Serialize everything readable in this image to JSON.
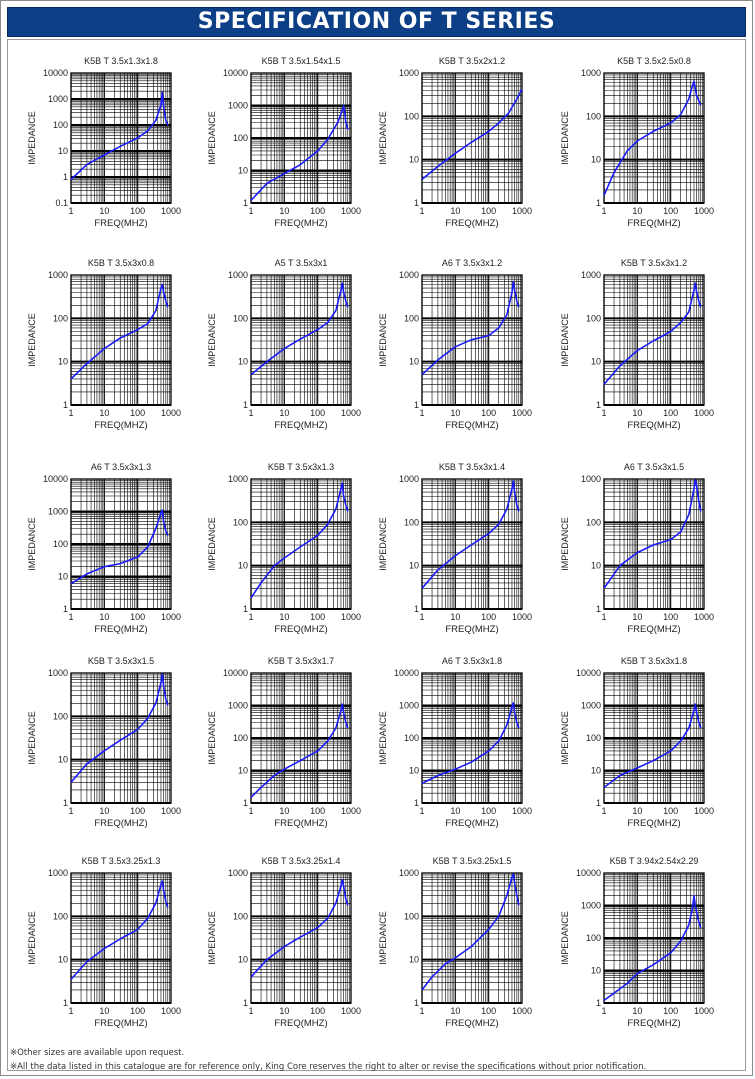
{
  "header": {
    "title": "SPECIFICATION OF T SERIES"
  },
  "notes": [
    "※Other sizes are available upon request.",
    "※All the data listed in this catalogue are for reference only, King Core reserves the right to alter or revise the specifications without prior notification."
  ],
  "colors": {
    "header_bg": "#0d3f86",
    "curve": "#1a1aff",
    "grid": "#000000"
  },
  "chart_data": [
    {
      "type": "line",
      "title": "K5B T 3.5x1.3x1.8",
      "xlabel": "FREQ(MHZ)",
      "ylabel": "IMPEDANCE",
      "xscale": "log",
      "yscale": "log",
      "xlim": [
        1,
        1000
      ],
      "ylim": [
        0.1,
        10000
      ],
      "x": [
        1,
        3,
        10,
        30,
        100,
        200,
        350,
        500,
        550,
        600,
        700,
        800
      ],
      "y": [
        0.8,
        3,
        7,
        15,
        32,
        60,
        150,
        600,
        1800,
        500,
        150,
        100
      ]
    },
    {
      "type": "line",
      "title": "K5B T 3.5x1.54x1.5",
      "xlabel": "FREQ(MHZ)",
      "ylabel": "IMPEDANCE",
      "xscale": "log",
      "yscale": "log",
      "xlim": [
        1,
        1000
      ],
      "ylim": [
        1,
        10000
      ],
      "x": [
        1,
        3,
        10,
        30,
        100,
        200,
        400,
        550,
        600,
        650,
        700,
        800
      ],
      "y": [
        1.2,
        4,
        8,
        15,
        40,
        90,
        300,
        700,
        1000,
        600,
        300,
        180
      ]
    },
    {
      "type": "line",
      "title": "K5B T 3.5x2x1.2",
      "xlabel": "FREQ(MHZ)",
      "ylabel": "IMPEDANCE",
      "xscale": "log",
      "yscale": "log",
      "xlim": [
        1,
        1000
      ],
      "ylim": [
        1,
        1000
      ],
      "x": [
        1,
        3,
        10,
        30,
        100,
        200,
        400,
        700,
        1000
      ],
      "y": [
        3.5,
        7,
        14,
        25,
        45,
        70,
        120,
        250,
        420
      ]
    },
    {
      "type": "line",
      "title": "K5B T 3.5x2.5x0.8",
      "xlabel": "FREQ(MHZ)",
      "ylabel": "IMPEDANCE",
      "xscale": "log",
      "yscale": "log",
      "xlim": [
        1,
        1000
      ],
      "ylim": [
        1,
        1000
      ],
      "x": [
        1,
        2,
        5,
        10,
        30,
        100,
        200,
        350,
        450,
        500,
        600,
        800
      ],
      "y": [
        1.5,
        5,
        16,
        27,
        45,
        70,
        110,
        250,
        500,
        650,
        300,
        180
      ]
    },
    {
      "type": "line",
      "title": "K5B T 3.5x3x0.8",
      "xlabel": "FREQ(MHZ)",
      "ylabel": "IMPEDANCE",
      "xscale": "log",
      "yscale": "log",
      "xlim": [
        1,
        1000
      ],
      "ylim": [
        1,
        1000
      ],
      "x": [
        1,
        3,
        10,
        30,
        100,
        200,
        350,
        500,
        550,
        600,
        700,
        800
      ],
      "y": [
        4,
        9,
        20,
        35,
        55,
        75,
        150,
        500,
        600,
        400,
        250,
        180
      ]
    },
    {
      "type": "line",
      "title": "A5 T 3.5x3x1",
      "xlabel": "FREQ(MHZ)",
      "ylabel": "IMPEDANCE",
      "xscale": "log",
      "yscale": "log",
      "xlim": [
        1,
        1000
      ],
      "ylim": [
        1,
        1000
      ],
      "x": [
        1,
        3,
        10,
        30,
        100,
        200,
        350,
        500,
        550,
        600,
        700,
        800
      ],
      "y": [
        5,
        10,
        20,
        33,
        55,
        80,
        150,
        450,
        650,
        400,
        250,
        180
      ]
    },
    {
      "type": "line",
      "title": "A6 T 3.5x3x1.2",
      "xlabel": "FREQ(MHZ)",
      "ylabel": "IMPEDANCE",
      "xscale": "log",
      "yscale": "log",
      "xlim": [
        1,
        1000
      ],
      "ylim": [
        1,
        1000
      ],
      "x": [
        1,
        3,
        10,
        30,
        100,
        200,
        350,
        500,
        550,
        600,
        700,
        800
      ],
      "y": [
        5,
        11,
        22,
        32,
        40,
        60,
        120,
        400,
        700,
        450,
        250,
        180
      ]
    },
    {
      "type": "line",
      "title": "K5B T 3.5x3x1.2",
      "xlabel": "FREQ(MHZ)",
      "ylabel": "IMPEDANCE",
      "xscale": "log",
      "yscale": "log",
      "xlim": [
        1,
        1000
      ],
      "ylim": [
        1,
        1000
      ],
      "x": [
        1,
        3,
        10,
        30,
        100,
        200,
        350,
        500,
        550,
        600,
        700,
        800
      ],
      "y": [
        3,
        8,
        18,
        30,
        50,
        80,
        140,
        450,
        650,
        400,
        250,
        180
      ]
    },
    {
      "type": "line",
      "title": "A6 T 3.5x3x1.3",
      "xlabel": "FREQ(MHZ)",
      "ylabel": "IMPEDANCE",
      "xscale": "log",
      "yscale": "log",
      "xlim": [
        1,
        1000
      ],
      "ylim": [
        1,
        10000
      ],
      "x": [
        1,
        3,
        10,
        30,
        100,
        200,
        350,
        500,
        550,
        600,
        700,
        800
      ],
      "y": [
        6,
        12,
        20,
        25,
        40,
        80,
        300,
        900,
        1100,
        500,
        250,
        180
      ]
    },
    {
      "type": "line",
      "title": "K5B T 3.5x3x1.3",
      "xlabel": "FREQ(MHZ)",
      "ylabel": "IMPEDANCE",
      "xscale": "log",
      "yscale": "log",
      "xlim": [
        1,
        1000
      ],
      "ylim": [
        1,
        1000
      ],
      "x": [
        1,
        2,
        5,
        10,
        30,
        100,
        200,
        350,
        500,
        550,
        600,
        700,
        800
      ],
      "y": [
        1.8,
        4,
        10,
        15,
        27,
        50,
        90,
        200,
        600,
        800,
        400,
        250,
        180
      ]
    },
    {
      "type": "line",
      "title": "K5B T 3.5x3x1.4",
      "xlabel": "FREQ(MHZ)",
      "ylabel": "IMPEDANCE",
      "xscale": "log",
      "yscale": "log",
      "xlim": [
        1,
        1000
      ],
      "ylim": [
        1,
        1000
      ],
      "x": [
        1,
        3,
        10,
        30,
        100,
        200,
        350,
        500,
        550,
        600,
        700,
        800
      ],
      "y": [
        3,
        8,
        17,
        30,
        55,
        90,
        200,
        600,
        900,
        500,
        250,
        180
      ]
    },
    {
      "type": "line",
      "title": "A6 T 3.5x3x1.5",
      "xlabel": "FREQ(MHZ)",
      "ylabel": "IMPEDANCE",
      "xscale": "log",
      "yscale": "log",
      "xlim": [
        1,
        1000
      ],
      "ylim": [
        1,
        1000
      ],
      "x": [
        1,
        3,
        10,
        30,
        100,
        200,
        350,
        500,
        550,
        600,
        700,
        800
      ],
      "y": [
        3,
        10,
        20,
        30,
        40,
        60,
        150,
        600,
        950,
        700,
        300,
        180
      ]
    },
    {
      "type": "line",
      "title": "K5B T 3.5x3x1.5",
      "xlabel": "FREQ(MHZ)",
      "ylabel": "IMPEDANCE",
      "xscale": "log",
      "yscale": "log",
      "xlim": [
        1,
        1000
      ],
      "ylim": [
        1,
        1000
      ],
      "x": [
        1,
        3,
        10,
        30,
        100,
        200,
        350,
        500,
        550,
        600,
        700,
        800
      ],
      "y": [
        3,
        8,
        16,
        28,
        50,
        90,
        200,
        600,
        950,
        500,
        250,
        180
      ]
    },
    {
      "type": "line",
      "title": "K5B T 3.5x3x1.7",
      "xlabel": "FREQ(MHZ)",
      "ylabel": "IMPEDANCE",
      "xscale": "log",
      "yscale": "log",
      "xlim": [
        1,
        1000
      ],
      "ylim": [
        1,
        10000
      ],
      "x": [
        1,
        2,
        5,
        10,
        30,
        100,
        200,
        350,
        500,
        550,
        600,
        700,
        800
      ],
      "y": [
        1.5,
        3,
        7,
        11,
        20,
        40,
        80,
        200,
        700,
        1100,
        600,
        300,
        200
      ]
    },
    {
      "type": "line",
      "title": "A6 T 3.5x3x1.8",
      "xlabel": "FREQ(MHZ)",
      "ylabel": "IMPEDANCE",
      "xscale": "log",
      "yscale": "log",
      "xlim": [
        1,
        1000
      ],
      "ylim": [
        1,
        10000
      ],
      "x": [
        1,
        3,
        10,
        30,
        100,
        200,
        350,
        500,
        550,
        600,
        700,
        800
      ],
      "y": [
        4,
        7,
        11,
        18,
        40,
        80,
        250,
        900,
        1200,
        600,
        300,
        200
      ]
    },
    {
      "type": "line",
      "title": "K5B T 3.5x3x1.8",
      "xlabel": "FREQ(MHZ)",
      "ylabel": "IMPEDANCE",
      "xscale": "log",
      "yscale": "log",
      "xlim": [
        1,
        1000
      ],
      "ylim": [
        1,
        10000
      ],
      "x": [
        1,
        3,
        10,
        30,
        100,
        200,
        350,
        500,
        550,
        600,
        700,
        800
      ],
      "y": [
        3,
        7,
        12,
        20,
        40,
        80,
        200,
        700,
        1100,
        600,
        300,
        200
      ]
    },
    {
      "type": "line",
      "title": "K5B T 3.5x3.25x1.3",
      "xlabel": "FREQ(MHZ)",
      "ylabel": "IMPEDANCE",
      "xscale": "log",
      "yscale": "log",
      "xlim": [
        1,
        1000
      ],
      "ylim": [
        1,
        1000
      ],
      "x": [
        1,
        3,
        10,
        30,
        100,
        200,
        350,
        500,
        550,
        600,
        700,
        800
      ],
      "y": [
        3.5,
        9,
        18,
        30,
        50,
        90,
        200,
        550,
        650,
        400,
        220,
        160
      ]
    },
    {
      "type": "line",
      "title": "K5B T 3.5x3.25x1.4",
      "xlabel": "FREQ(MHZ)",
      "ylabel": "IMPEDANCE",
      "xscale": "log",
      "yscale": "log",
      "xlim": [
        1,
        1000
      ],
      "ylim": [
        1,
        1000
      ],
      "x": [
        1,
        3,
        10,
        30,
        100,
        200,
        350,
        500,
        550,
        600,
        700,
        800
      ],
      "y": [
        4,
        10,
        20,
        33,
        55,
        90,
        200,
        500,
        700,
        500,
        250,
        180
      ]
    },
    {
      "type": "line",
      "title": "K5B T 3.5x3.25x1.5",
      "xlabel": "FREQ(MHZ)",
      "ylabel": "IMPEDANCE",
      "xscale": "log",
      "yscale": "log",
      "xlim": [
        1,
        1000
      ],
      "ylim": [
        1,
        1000
      ],
      "x": [
        1,
        2,
        5,
        10,
        30,
        100,
        200,
        350,
        500,
        550,
        600,
        700,
        800
      ],
      "y": [
        2,
        4,
        8,
        11,
        20,
        50,
        100,
        300,
        800,
        950,
        600,
        300,
        180
      ]
    },
    {
      "type": "line",
      "title": "K5B T 3.94x2.54x2.29",
      "xlabel": "FREQ(MHZ)",
      "ylabel": "IMPEDANCE",
      "xscale": "log",
      "yscale": "log",
      "xlim": [
        1,
        1000
      ],
      "ylim": [
        1,
        10000
      ],
      "x": [
        1,
        2,
        5,
        10,
        30,
        100,
        200,
        350,
        450,
        500,
        550,
        650,
        800
      ],
      "y": [
        1.2,
        2,
        4,
        8,
        15,
        35,
        80,
        250,
        800,
        2000,
        1000,
        400,
        200
      ]
    }
  ]
}
